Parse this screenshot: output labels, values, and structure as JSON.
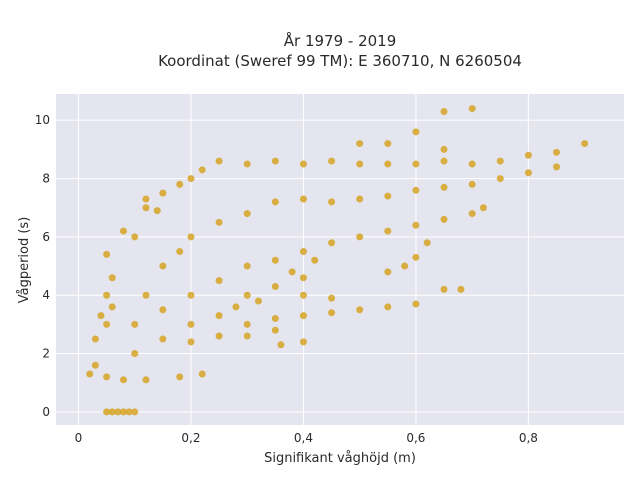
{
  "chart_data": {
    "type": "scatter",
    "title_line1": "År 1979 - 2019",
    "title_line2": "Koordinat (Sweref 99 TM): E 360710, N 6260504",
    "xlabel": "Signifikant våghöjd (m)",
    "ylabel": "Vågperiod (s)",
    "xlim": [
      -0.04,
      0.97
    ],
    "ylim": [
      -0.45,
      10.9
    ],
    "x_ticks": [
      0,
      0.2,
      0.4,
      0.6,
      0.8
    ],
    "x_tick_labels": [
      "0",
      "0,2",
      "0,4",
      "0,6",
      "0,8"
    ],
    "y_ticks": [
      0,
      2,
      4,
      6,
      8,
      10
    ],
    "y_tick_labels": [
      "0",
      "2",
      "4",
      "6",
      "8",
      "10"
    ],
    "grid": true,
    "marker_color": "#d4a017",
    "background_color": "#e5e5ef",
    "series": [
      {
        "values": [
          [
            0.05,
            0
          ],
          [
            0.06,
            0
          ],
          [
            0.07,
            0
          ],
          [
            0.08,
            0
          ],
          [
            0.09,
            0
          ],
          [
            0.1,
            0
          ],
          [
            0.02,
            1.3
          ],
          [
            0.03,
            1.6
          ],
          [
            0.05,
            1.2
          ],
          [
            0.08,
            1.1
          ],
          [
            0.12,
            1.1
          ],
          [
            0.18,
            1.2
          ],
          [
            0.22,
            1.3
          ],
          [
            0.03,
            2.5
          ],
          [
            0.04,
            3.3
          ],
          [
            0.05,
            3.0
          ],
          [
            0.05,
            4.0
          ],
          [
            0.05,
            5.4
          ],
          [
            0.06,
            4.6
          ],
          [
            0.06,
            3.6
          ],
          [
            0.08,
            6.2
          ],
          [
            0.1,
            6.0
          ],
          [
            0.12,
            7.0
          ],
          [
            0.15,
            7.5
          ],
          [
            0.18,
            7.8
          ],
          [
            0.2,
            8.0
          ],
          [
            0.22,
            8.3
          ],
          [
            0.25,
            8.6
          ],
          [
            0.3,
            8.5
          ],
          [
            0.35,
            8.6
          ],
          [
            0.4,
            8.5
          ],
          [
            0.45,
            8.6
          ],
          [
            0.5,
            8.5
          ],
          [
            0.55,
            8.5
          ],
          [
            0.6,
            8.5
          ],
          [
            0.65,
            8.6
          ],
          [
            0.7,
            8.5
          ],
          [
            0.75,
            8.6
          ],
          [
            0.8,
            8.8
          ],
          [
            0.85,
            8.9
          ],
          [
            0.9,
            9.2
          ],
          [
            0.55,
            9.2
          ],
          [
            0.6,
            9.6
          ],
          [
            0.65,
            10.3
          ],
          [
            0.7,
            10.4
          ],
          [
            0.65,
            9.0
          ],
          [
            0.5,
            9.2
          ],
          [
            0.1,
            2.0
          ],
          [
            0.15,
            2.5
          ],
          [
            0.2,
            3.0
          ],
          [
            0.25,
            3.3
          ],
          [
            0.3,
            3.0
          ],
          [
            0.35,
            3.2
          ],
          [
            0.4,
            3.3
          ],
          [
            0.45,
            3.4
          ],
          [
            0.5,
            3.5
          ],
          [
            0.55,
            3.6
          ],
          [
            0.6,
            3.7
          ],
          [
            0.65,
            4.2
          ],
          [
            0.68,
            4.2
          ],
          [
            0.12,
            4.0
          ],
          [
            0.15,
            5.0
          ],
          [
            0.18,
            5.5
          ],
          [
            0.2,
            6.0
          ],
          [
            0.25,
            6.5
          ],
          [
            0.3,
            6.8
          ],
          [
            0.35,
            7.2
          ],
          [
            0.4,
            7.3
          ],
          [
            0.45,
            7.2
          ],
          [
            0.5,
            7.3
          ],
          [
            0.55,
            7.4
          ],
          [
            0.6,
            7.6
          ],
          [
            0.65,
            7.7
          ],
          [
            0.7,
            7.8
          ],
          [
            0.75,
            8.0
          ],
          [
            0.8,
            8.2
          ],
          [
            0.85,
            8.4
          ],
          [
            0.1,
            3.0
          ],
          [
            0.15,
            3.5
          ],
          [
            0.2,
            4.0
          ],
          [
            0.25,
            4.5
          ],
          [
            0.3,
            5.0
          ],
          [
            0.35,
            5.2
          ],
          [
            0.4,
            5.5
          ],
          [
            0.45,
            5.8
          ],
          [
            0.5,
            6.0
          ],
          [
            0.55,
            6.2
          ],
          [
            0.6,
            6.4
          ],
          [
            0.65,
            6.6
          ],
          [
            0.7,
            6.8
          ],
          [
            0.72,
            7.0
          ],
          [
            0.3,
            2.6
          ],
          [
            0.35,
            2.8
          ],
          [
            0.2,
            2.4
          ],
          [
            0.25,
            2.6
          ],
          [
            0.4,
            4.0
          ],
          [
            0.45,
            3.9
          ],
          [
            0.4,
            4.6
          ],
          [
            0.35,
            4.3
          ],
          [
            0.38,
            4.8
          ],
          [
            0.42,
            5.2
          ],
          [
            0.55,
            4.8
          ],
          [
            0.6,
            5.3
          ],
          [
            0.62,
            5.8
          ],
          [
            0.58,
            5.0
          ],
          [
            0.3,
            4.0
          ],
          [
            0.28,
            3.6
          ],
          [
            0.32,
            3.8
          ],
          [
            0.4,
            2.4
          ],
          [
            0.36,
            2.3
          ],
          [
            0.12,
            7.3
          ],
          [
            0.14,
            6.9
          ]
        ]
      }
    ]
  }
}
